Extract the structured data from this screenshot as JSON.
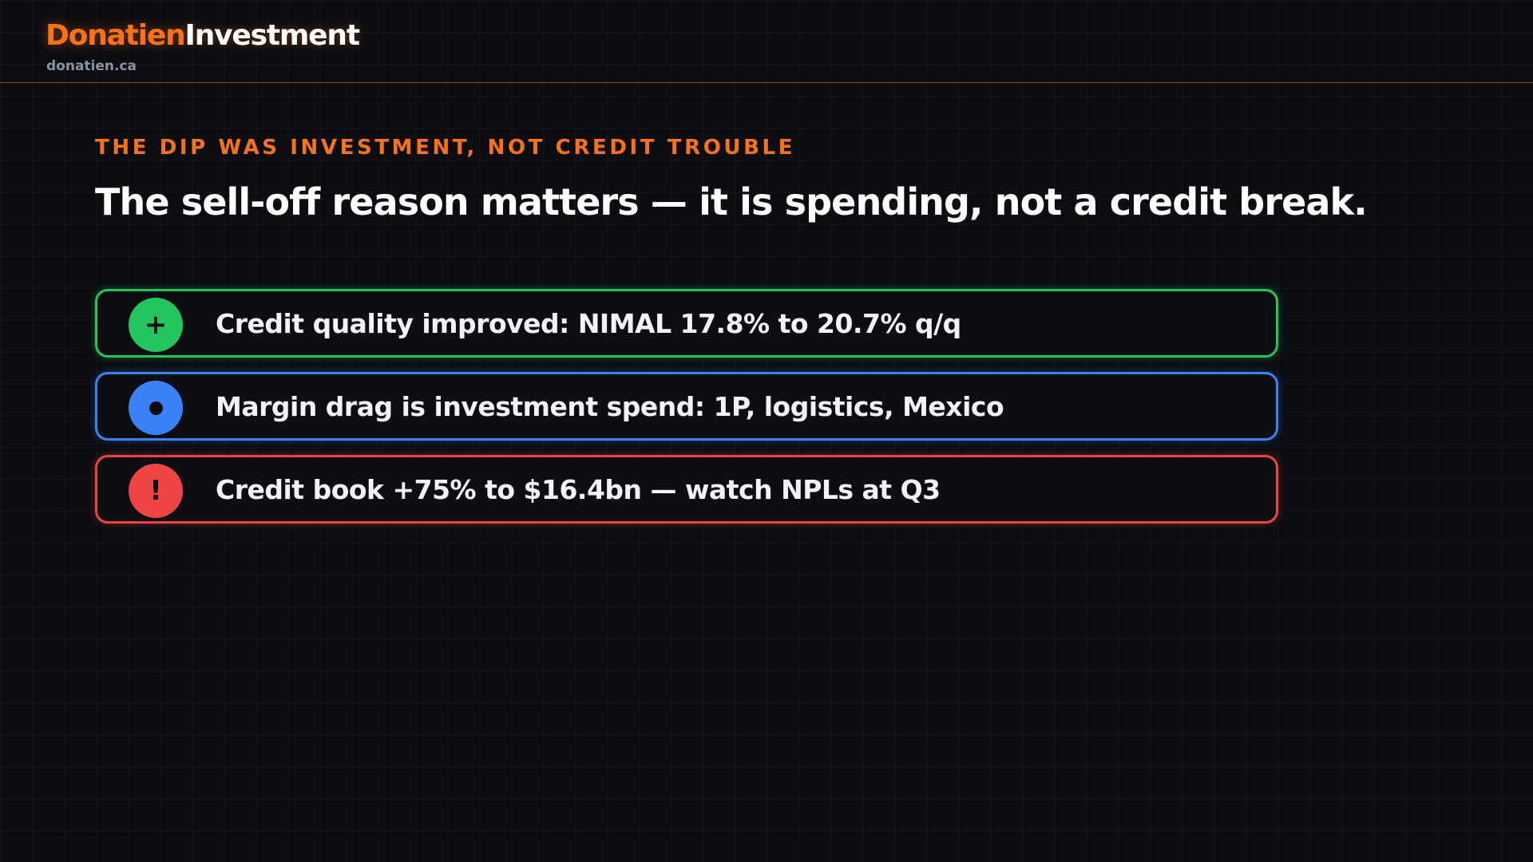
{
  "header": {
    "brand_primary": "Donatien",
    "brand_secondary": "Investment",
    "domain": "donatien.ca"
  },
  "slide": {
    "eyebrow": "THE DIP WAS INVESTMENT, NOT CREDIT TROUBLE",
    "headline": "The sell-off reason matters — it is spending, not a credit break.",
    "cards": [
      {
        "badge": "+",
        "icon": "plus-icon",
        "text": "Credit quality improved: NIMAL 17.8% to 20.7% q/q",
        "color": "#22c55e"
      },
      {
        "icon": "dot-icon",
        "text": "Margin drag is investment spend: 1P, logistics, Mexico",
        "color": "#3b82f6"
      },
      {
        "badge": "!",
        "icon": "exclamation-icon",
        "text": "Credit book +75% to $16.4bn — watch NPLs at Q3",
        "color": "#ef4444"
      }
    ]
  },
  "colors": {
    "accent": "#f97316",
    "background": "#0b0d11"
  }
}
